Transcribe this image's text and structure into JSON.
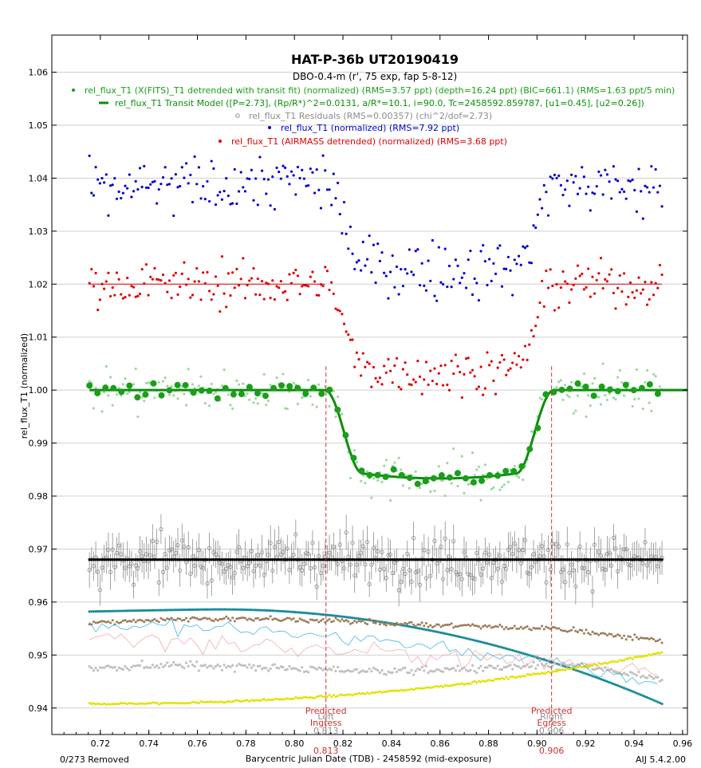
{
  "chart_data": {
    "type": "scatter",
    "title": "HAT-P-36b UT20190419",
    "subtitle": "DBO-0.4-m (r', 75 exp, fap 5-8-12)",
    "xlabel": "Barycentric Julian Date (TDB) - 2458592 (mid-exposure)",
    "ylabel": "rel_flux_T1 (normalized)",
    "xlim": [
      0.7,
      0.962
    ],
    "ylim": [
      0.935,
      1.067
    ],
    "xticks": [
      "0.72",
      "0.74",
      "0.76",
      "0.78",
      "0.80",
      "0.82",
      "0.84",
      "0.86",
      "0.88",
      "0.90",
      "0.92",
      "0.94",
      "0.96"
    ],
    "yticks": [
      "0.94",
      "0.95",
      "0.96",
      "0.97",
      "0.98",
      "0.99",
      "1.00",
      "1.01",
      "1.02",
      "1.03",
      "1.04",
      "1.05",
      "1.06"
    ],
    "grid": true,
    "legend_position": "top-center",
    "footer_left": "0/273 Removed",
    "footer_right": "AIJ 5.4.2.00",
    "markers": [
      {
        "x": 0.813,
        "line1": "Predicted",
        "ghost": "Left",
        "line2": "Ingress",
        "value": "0.813"
      },
      {
        "x": 0.906,
        "line1": "Predicted",
        "ghost": "Right",
        "line2": "Egress",
        "value": "0.906"
      }
    ],
    "series": [
      {
        "name": "rel_flux_T1 (X(FITS)_T1 detrended with transit fit) (normalized) (RMS=3.57 ppt) (depth=16.24 ppt) (BIC=661.1) (RMS=1.63 ppt/5 min)",
        "color": "#1a9e1a",
        "marker": "dot",
        "offset": 0,
        "legend": true
      },
      {
        "name": "rel_flux_T1 Transit Model ([P=2.73], (Rp/R*)^2=0.0131, a/R*=10.1, i=90.0, Tc=2458592.859787, [u1=0.45], [u2=0.26])",
        "color": "#0a8f0a",
        "marker": "line",
        "legend": true
      },
      {
        "name": "rel_flux_T1 Residuals (RMS=0.00357) (chi^2/dof=2.73)",
        "color": "#8c8c8c",
        "marker": "circle",
        "offset": 0.968,
        "legend": true
      },
      {
        "name": "rel_flux_T1 (normalized) (RMS=7.92 ppt)",
        "color": "#0000d0",
        "marker": "dot",
        "offset": 0.038,
        "legend": true
      },
      {
        "name": "rel_flux_T1 (AIRMASS detrended) (normalized) (RMS=3.68 ppt)",
        "color": "#e00000",
        "marker": "dot",
        "offset": 0.02,
        "legend": true
      }
    ],
    "model": {
      "x0": 0.7155,
      "x1": 0.962,
      "ingress_start": 0.8125,
      "ingress_end": 0.828,
      "egress_start": 0.8915,
      "egress_end": 0.907,
      "baseline": 1.0,
      "depth": 0.0162
    },
    "x_data": {
      "start": 0.7155,
      "end": 0.9515,
      "count": 273
    },
    "aux_series": [
      {
        "name": "airmass",
        "color": "#1a8c99",
        "y_start": 0.9582,
        "y_peak": 0.9587,
        "y_end": 0.9408
      },
      {
        "name": "comp-brown",
        "color": "#9b7a58",
        "y_level": 0.956
      },
      {
        "name": "comp-gray",
        "color": "#c0c0c0",
        "y_level": 0.9475
      },
      {
        "name": "comp-yellow",
        "color": "#e2e200",
        "y_start": 0.9408,
        "y_end": 0.9505
      },
      {
        "name": "comp-cyan-line",
        "color": "#2ab0e0"
      },
      {
        "name": "comp-pink-line",
        "color": "#f0a0a0"
      }
    ]
  }
}
